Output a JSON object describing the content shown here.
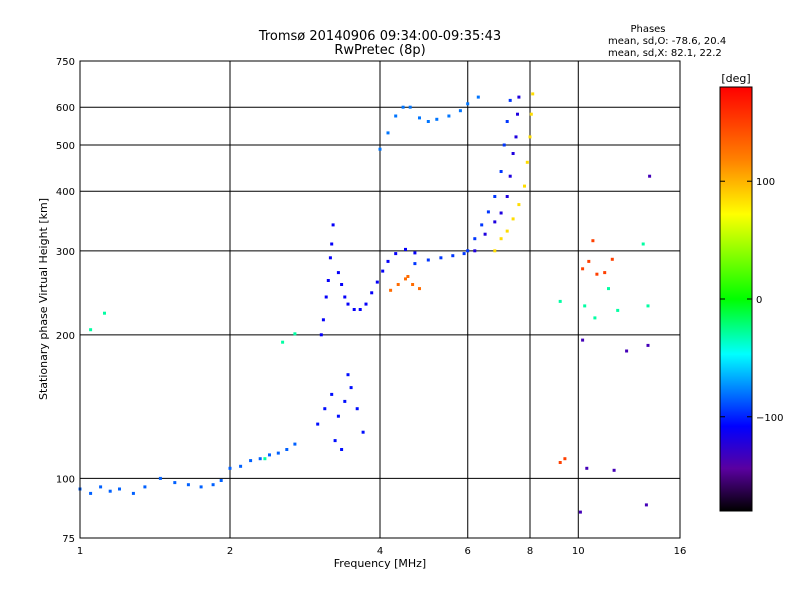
{
  "chart_data": {
    "type": "scatter",
    "title": "Tromsø 20140906 09:34:00-09:35:43",
    "subtitle": "RwPretec (8p)",
    "stats": {
      "heading": "Phases",
      "line1": "mean, sd,O:  -78.6, 20.4",
      "line2": "mean, sd,X:  82.1, 22.2"
    },
    "xlabel": "Frequency [MHz]",
    "ylabel": "Stationary phase Virtual Height [km]",
    "xscale": "log",
    "yscale": "log",
    "xlim": [
      1,
      16
    ],
    "ylim": [
      75,
      750
    ],
    "xticks": [
      1,
      2,
      4,
      6,
      8,
      10,
      16
    ],
    "xtick_labels": [
      "1",
      "2",
      "4",
      "6",
      "8",
      "10",
      "16"
    ],
    "yticks": [
      75,
      100,
      200,
      300,
      400,
      500,
      600,
      750
    ],
    "ytick_labels": [
      "75",
      "100",
      "200",
      "300",
      "400",
      "500",
      "600",
      "750"
    ],
    "grid": true,
    "colorbar": {
      "label": "[deg]",
      "min": -180,
      "max": 180,
      "ticks": [
        100,
        0,
        -100
      ],
      "tick_labels": [
        "100",
        "0",
        "−100"
      ]
    },
    "series": [
      {
        "phase": -85,
        "points": [
          [
            1.0,
            95
          ],
          [
            1.05,
            93
          ],
          [
            1.1,
            96
          ],
          [
            1.15,
            94
          ],
          [
            1.2,
            95
          ],
          [
            1.28,
            93
          ],
          [
            1.35,
            96
          ],
          [
            1.45,
            100
          ],
          [
            1.55,
            98
          ],
          [
            1.65,
            97
          ],
          [
            1.75,
            96
          ],
          [
            1.85,
            97
          ],
          [
            1.92,
            99
          ],
          [
            2.0,
            105
          ],
          [
            2.1,
            106
          ],
          [
            2.2,
            109
          ],
          [
            2.3,
            110
          ],
          [
            2.4,
            112
          ],
          [
            2.5,
            113
          ],
          [
            2.6,
            115
          ],
          [
            2.7,
            118
          ]
        ]
      },
      {
        "phase": -110,
        "points": [
          [
            3.05,
            200
          ],
          [
            3.08,
            215
          ],
          [
            3.12,
            240
          ],
          [
            3.15,
            260
          ],
          [
            3.18,
            290
          ],
          [
            3.2,
            310
          ],
          [
            3.22,
            340
          ],
          [
            3.3,
            270
          ],
          [
            3.35,
            255
          ],
          [
            3.4,
            240
          ],
          [
            3.45,
            232
          ],
          [
            3.55,
            226
          ],
          [
            3.65,
            226
          ],
          [
            3.75,
            232
          ],
          [
            3.85,
            245
          ],
          [
            3.95,
            258
          ],
          [
            4.05,
            272
          ],
          [
            4.15,
            285
          ],
          [
            4.3,
            296
          ],
          [
            4.5,
            302
          ],
          [
            4.7,
            297
          ]
        ]
      },
      {
        "phase": -80,
        "points": [
          [
            4.0,
            490
          ],
          [
            4.15,
            530
          ],
          [
            4.3,
            575
          ],
          [
            4.45,
            600
          ],
          [
            4.6,
            600
          ],
          [
            4.8,
            570
          ],
          [
            5.0,
            560
          ],
          [
            5.2,
            566
          ],
          [
            5.5,
            575
          ],
          [
            5.8,
            590
          ],
          [
            6.0,
            610
          ],
          [
            6.3,
            630
          ]
        ]
      },
      {
        "phase": -95,
        "points": [
          [
            4.7,
            282
          ],
          [
            5.0,
            287
          ],
          [
            5.3,
            290
          ],
          [
            5.6,
            293
          ],
          [
            5.9,
            296
          ],
          [
            6.0,
            300
          ],
          [
            6.2,
            318
          ],
          [
            6.4,
            340
          ],
          [
            6.6,
            362
          ],
          [
            6.8,
            390
          ],
          [
            7.0,
            440
          ],
          [
            7.1,
            500
          ],
          [
            7.2,
            560
          ],
          [
            7.3,
            620
          ]
        ]
      },
      {
        "phase": -120,
        "points": [
          [
            6.2,
            300
          ],
          [
            6.5,
            325
          ],
          [
            6.8,
            345
          ],
          [
            7.0,
            360
          ],
          [
            7.2,
            390
          ],
          [
            7.3,
            430
          ],
          [
            7.4,
            480
          ],
          [
            7.5,
            520
          ],
          [
            7.55,
            580
          ],
          [
            7.6,
            630
          ]
        ]
      },
      {
        "phase": 85,
        "points": [
          [
            6.8,
            300
          ],
          [
            7.0,
            318
          ],
          [
            7.2,
            330
          ],
          [
            7.4,
            350
          ],
          [
            7.6,
            375
          ],
          [
            7.8,
            410
          ],
          [
            7.9,
            460
          ],
          [
            8.0,
            520
          ],
          [
            8.05,
            580
          ],
          [
            8.1,
            640
          ]
        ]
      },
      {
        "phase": 130,
        "points": [
          [
            4.2,
            248
          ],
          [
            4.35,
            255
          ],
          [
            4.5,
            262
          ],
          [
            4.65,
            255
          ],
          [
            4.8,
            250
          ],
          [
            4.55,
            265
          ]
        ]
      },
      {
        "phase": -105,
        "points": [
          [
            3.0,
            130
          ],
          [
            3.1,
            140
          ],
          [
            3.2,
            150
          ],
          [
            3.3,
            135
          ],
          [
            3.4,
            145
          ],
          [
            3.5,
            155
          ],
          [
            3.6,
            140
          ],
          [
            3.7,
            125
          ],
          [
            3.35,
            115
          ],
          [
            3.45,
            165
          ],
          [
            3.25,
            120
          ]
        ]
      },
      {
        "phase": -30,
        "points": [
          [
            1.05,
            205
          ],
          [
            1.12,
            222
          ],
          [
            2.35,
            110
          ],
          [
            2.55,
            193
          ],
          [
            2.7,
            201
          ],
          [
            9.2,
            235
          ],
          [
            10.3,
            230
          ],
          [
            10.8,
            217
          ],
          [
            11.5,
            250
          ],
          [
            12.0,
            225
          ],
          [
            13.5,
            310
          ],
          [
            13.8,
            230
          ]
        ]
      },
      {
        "phase": 150,
        "points": [
          [
            9.2,
            108
          ],
          [
            9.4,
            110
          ],
          [
            10.2,
            275
          ],
          [
            10.5,
            285
          ],
          [
            10.9,
            268
          ],
          [
            11.3,
            270
          ],
          [
            11.7,
            288
          ],
          [
            10.7,
            315
          ]
        ]
      },
      {
        "phase": -135,
        "points": [
          [
            10.1,
            85
          ],
          [
            10.4,
            105
          ],
          [
            11.8,
            104
          ],
          [
            13.7,
            88
          ],
          [
            13.8,
            190
          ],
          [
            13.9,
            430
          ],
          [
            10.2,
            195
          ],
          [
            12.5,
            185
          ]
        ]
      }
    ]
  }
}
